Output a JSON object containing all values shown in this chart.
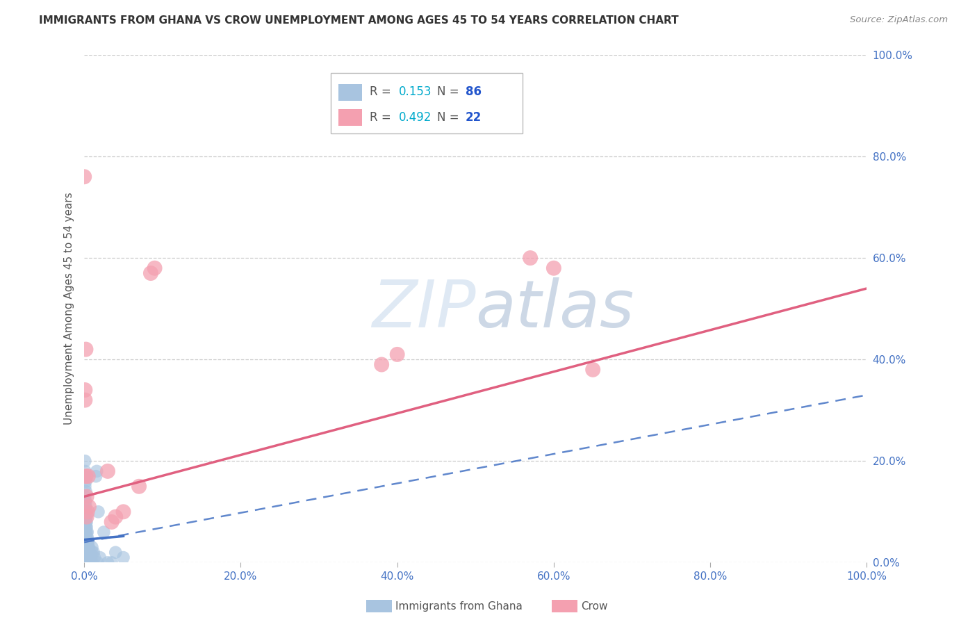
{
  "title": "IMMIGRANTS FROM GHANA VS CROW UNEMPLOYMENT AMONG AGES 45 TO 54 YEARS CORRELATION CHART",
  "source": "Source: ZipAtlas.com",
  "xlabel_ticks": [
    "0.0%",
    "20.0%",
    "40.0%",
    "60.0%",
    "80.0%",
    "100.0%"
  ],
  "xlabel_tick_vals": [
    0,
    20,
    40,
    60,
    80,
    100
  ],
  "ylabel": "Unemployment Among Ages 45 to 54 years",
  "ylabel_ticks": [
    "0.0%",
    "20.0%",
    "40.0%",
    "60.0%",
    "80.0%",
    "100.0%"
  ],
  "ylabel_tick_vals": [
    0,
    20,
    40,
    60,
    80,
    100
  ],
  "xlim": [
    0,
    100
  ],
  "ylim": [
    0,
    100
  ],
  "watermark": "ZIPatlas",
  "ghana_color": "#a8c4e0",
  "crow_color": "#f4a0b0",
  "ghana_line_color": "#4472c4",
  "crow_line_color": "#e06080",
  "ghana_scatter": [
    [
      0.0,
      2.0
    ],
    [
      0.0,
      3.0
    ],
    [
      0.0,
      0.0
    ],
    [
      0.0,
      5.0
    ],
    [
      0.0,
      6.0
    ],
    [
      0.0,
      8.0
    ],
    [
      0.0,
      10.0
    ],
    [
      0.0,
      12.0
    ],
    [
      0.1,
      0.0
    ],
    [
      0.1,
      1.0
    ],
    [
      0.1,
      2.0
    ],
    [
      0.1,
      3.0
    ],
    [
      0.1,
      5.0
    ],
    [
      0.1,
      6.0
    ],
    [
      0.1,
      7.0
    ],
    [
      0.1,
      8.0
    ],
    [
      0.1,
      9.0
    ],
    [
      0.1,
      10.0
    ],
    [
      0.1,
      11.0
    ],
    [
      0.1,
      13.0
    ],
    [
      0.1,
      15.0
    ],
    [
      0.1,
      17.0
    ],
    [
      0.1,
      18.0
    ],
    [
      0.1,
      20.0
    ],
    [
      0.2,
      0.0
    ],
    [
      0.2,
      1.0
    ],
    [
      0.2,
      2.0
    ],
    [
      0.2,
      3.0
    ],
    [
      0.2,
      4.0
    ],
    [
      0.2,
      5.0
    ],
    [
      0.2,
      6.0
    ],
    [
      0.2,
      7.0
    ],
    [
      0.2,
      8.0
    ],
    [
      0.2,
      9.0
    ],
    [
      0.2,
      10.0
    ],
    [
      0.2,
      11.0
    ],
    [
      0.2,
      12.0
    ],
    [
      0.2,
      14.0
    ],
    [
      0.2,
      16.0
    ],
    [
      0.3,
      0.0
    ],
    [
      0.3,
      1.0
    ],
    [
      0.3,
      2.0
    ],
    [
      0.3,
      3.0
    ],
    [
      0.3,
      4.0
    ],
    [
      0.3,
      5.0
    ],
    [
      0.3,
      6.0
    ],
    [
      0.3,
      7.0
    ],
    [
      0.3,
      8.0
    ],
    [
      0.3,
      9.0
    ],
    [
      0.3,
      10.0
    ],
    [
      0.4,
      0.0
    ],
    [
      0.4,
      1.0
    ],
    [
      0.4,
      2.0
    ],
    [
      0.4,
      3.0
    ],
    [
      0.4,
      4.0
    ],
    [
      0.4,
      5.0
    ],
    [
      0.4,
      6.0
    ],
    [
      0.5,
      0.0
    ],
    [
      0.5,
      1.0
    ],
    [
      0.5,
      2.0
    ],
    [
      0.5,
      3.0
    ],
    [
      0.5,
      4.0
    ],
    [
      0.6,
      1.0
    ],
    [
      0.6,
      2.0
    ],
    [
      0.6,
      3.0
    ],
    [
      0.7,
      0.0
    ],
    [
      0.7,
      1.0
    ],
    [
      0.7,
      2.0
    ],
    [
      0.8,
      0.0
    ],
    [
      0.8,
      1.0
    ],
    [
      0.9,
      1.0
    ],
    [
      1.0,
      0.0
    ],
    [
      1.0,
      2.0
    ],
    [
      1.0,
      3.0
    ],
    [
      1.2,
      2.0
    ],
    [
      1.3,
      1.0
    ],
    [
      1.5,
      17.0
    ],
    [
      1.6,
      18.0
    ],
    [
      1.7,
      0.0
    ],
    [
      1.8,
      10.0
    ],
    [
      2.0,
      1.0
    ],
    [
      2.5,
      6.0
    ],
    [
      3.0,
      0.0
    ],
    [
      3.5,
      0.0
    ],
    [
      4.0,
      2.0
    ],
    [
      5.0,
      1.0
    ]
  ],
  "crow_scatter": [
    [
      0.0,
      76.0
    ],
    [
      0.1,
      34.0
    ],
    [
      0.1,
      32.0
    ],
    [
      0.2,
      42.0
    ],
    [
      0.2,
      17.0
    ],
    [
      0.3,
      13.0
    ],
    [
      0.3,
      9.0
    ],
    [
      0.4,
      10.0
    ],
    [
      0.5,
      17.0
    ],
    [
      0.6,
      11.0
    ],
    [
      3.0,
      18.0
    ],
    [
      3.5,
      8.0
    ],
    [
      4.0,
      9.0
    ],
    [
      5.0,
      10.0
    ],
    [
      7.0,
      15.0
    ],
    [
      8.5,
      57.0
    ],
    [
      9.0,
      58.0
    ],
    [
      38.0,
      39.0
    ],
    [
      40.0,
      41.0
    ],
    [
      57.0,
      60.0
    ],
    [
      60.0,
      58.0
    ],
    [
      65.0,
      38.0
    ]
  ],
  "ghana_solid_line": {
    "x0": 0.0,
    "y0": 4.5,
    "x1": 5.0,
    "y1": 5.2
  },
  "ghana_dashed_line": {
    "x0": 0.0,
    "y0": 4.0,
    "x1": 100.0,
    "y1": 33.0
  },
  "crow_solid_line": {
    "x0": 0.0,
    "y0": 13.0,
    "x1": 100.0,
    "y1": 54.0
  }
}
